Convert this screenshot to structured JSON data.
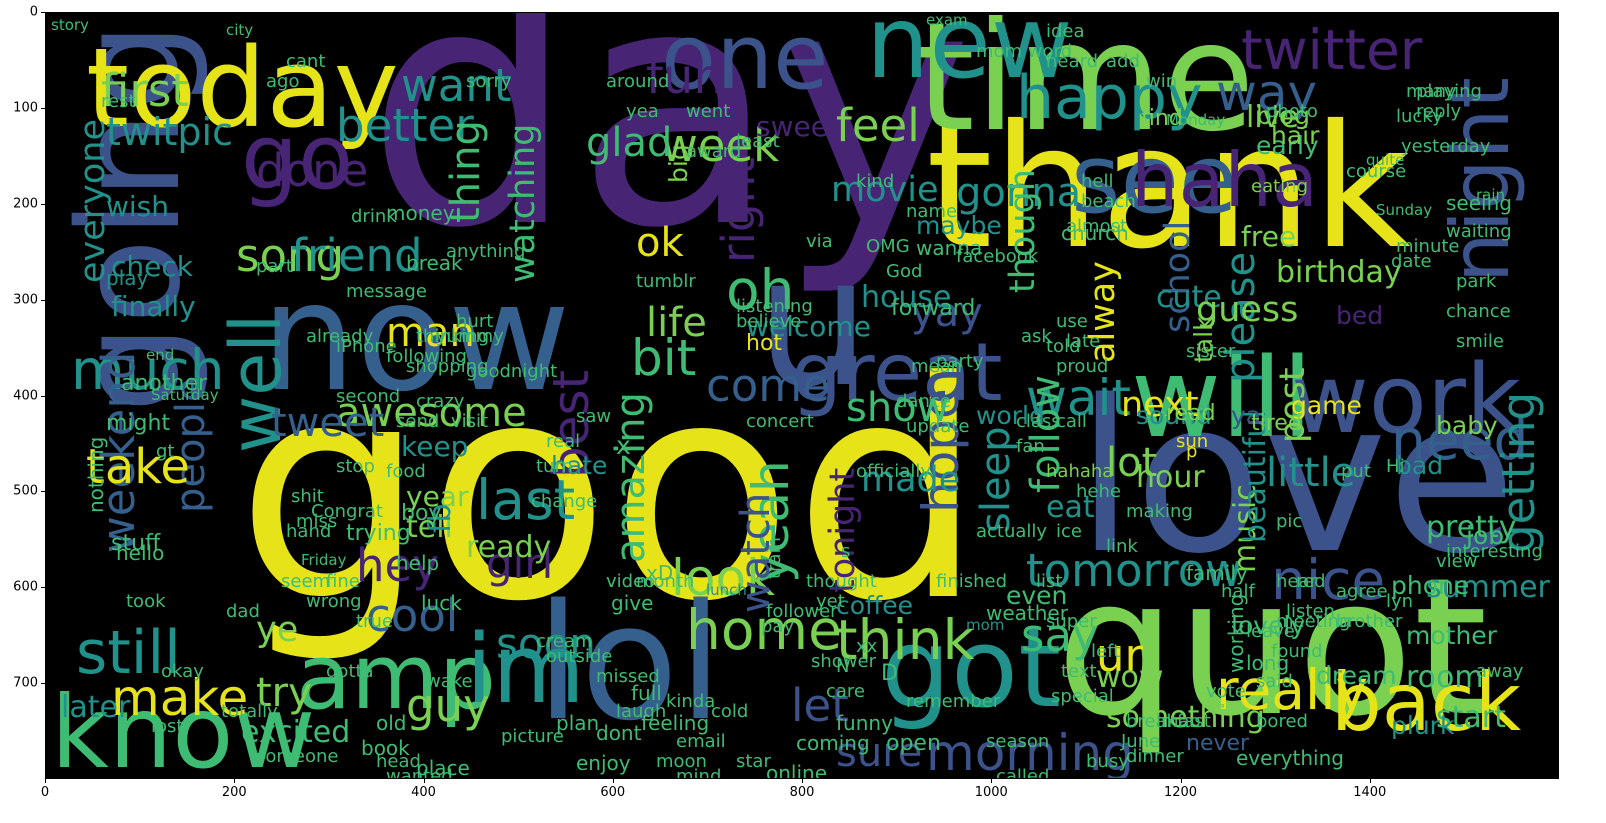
{
  "axes": {
    "x_ticks": [
      "0",
      "200",
      "400",
      "600",
      "800",
      "1000",
      "1200",
      "1400"
    ],
    "y_ticks": [
      "0",
      "100",
      "200",
      "300",
      "400",
      "500",
      "600",
      "700"
    ]
  },
  "palette": {
    "yellow": "#e6e419",
    "lime": "#7ad151",
    "green": "#3fbc73",
    "teal": "#21918c",
    "blue": "#355f8d",
    "indigo": "#3b528b",
    "purple": "#482475",
    "dark": "#440154"
  },
  "words": [
    {
      "t": "good",
      "c": "yellow"
    },
    {
      "t": "day",
      "c": "purple"
    },
    {
      "t": "thank",
      "c": "yellow"
    },
    {
      "t": "quot",
      "c": "lime"
    },
    {
      "t": "love",
      "c": "indigo"
    },
    {
      "t": "time",
      "c": "lime"
    },
    {
      "t": "now",
      "c": "blue"
    },
    {
      "t": "u",
      "c": "indigo"
    },
    {
      "t": "lol",
      "c": "blue"
    },
    {
      "t": "going",
      "c": "indigo"
    },
    {
      "t": "new",
      "c": "teal"
    },
    {
      "t": "today",
      "c": "yellow"
    },
    {
      "t": "one",
      "c": "indigo"
    },
    {
      "t": "will",
      "c": "green"
    },
    {
      "t": "got",
      "c": "teal"
    },
    {
      "t": "amp",
      "c": "green"
    },
    {
      "t": "know",
      "c": "green"
    },
    {
      "t": "see",
      "c": "blue"
    },
    {
      "t": "im",
      "c": "teal"
    },
    {
      "t": "work",
      "c": "indigo"
    },
    {
      "t": "back",
      "c": "yellow"
    },
    {
      "t": "haha",
      "c": "purple"
    },
    {
      "t": "great",
      "c": "indigo"
    },
    {
      "t": "go",
      "c": "purple"
    },
    {
      "t": "well",
      "c": "teal"
    },
    {
      "t": "night",
      "c": "indigo"
    },
    {
      "t": "twitter",
      "c": "purple"
    },
    {
      "t": "much",
      "c": "teal"
    },
    {
      "t": "make",
      "c": "yellow"
    },
    {
      "t": "think",
      "c": "lime"
    },
    {
      "t": "really",
      "c": "yellow"
    },
    {
      "t": "morning",
      "c": "indigo"
    },
    {
      "t": "home",
      "c": "lime"
    },
    {
      "t": "last",
      "c": "teal"
    },
    {
      "t": "tomorrow",
      "c": "teal"
    },
    {
      "t": "still",
      "c": "teal"
    },
    {
      "t": "guy",
      "c": "lime"
    },
    {
      "t": "hope",
      "c": "indigo"
    },
    {
      "t": "need",
      "c": "blue"
    },
    {
      "t": "wait",
      "c": "teal"
    },
    {
      "t": "happy",
      "c": "teal"
    },
    {
      "t": "bit",
      "c": "green"
    },
    {
      "t": "want",
      "c": "teal"
    },
    {
      "t": "say",
      "c": "green"
    },
    {
      "t": "look",
      "c": "lime"
    },
    {
      "t": "awesome",
      "c": "lime"
    },
    {
      "t": "feel",
      "c": "lime"
    },
    {
      "t": "way",
      "c": "blue"
    },
    {
      "t": "twitpic",
      "c": "teal"
    },
    {
      "t": "fun",
      "c": "purple"
    },
    {
      "t": "movie",
      "c": "teal"
    },
    {
      "t": "week",
      "c": "lime"
    },
    {
      "t": "song",
      "c": "lime"
    },
    {
      "t": "friend",
      "c": "teal"
    },
    {
      "t": "better",
      "c": "teal"
    },
    {
      "t": "first",
      "c": "lime"
    },
    {
      "t": "watching",
      "c": "green"
    },
    {
      "t": "thing",
      "c": "green"
    },
    {
      "t": "right",
      "c": "purple"
    },
    {
      "t": "oh",
      "c": "green"
    },
    {
      "t": "ok",
      "c": "yellow"
    },
    {
      "t": "gonna",
      "c": "teal"
    },
    {
      "t": "done",
      "c": "purple"
    },
    {
      "t": "life",
      "c": "lime"
    },
    {
      "t": "come",
      "c": "blue"
    },
    {
      "t": "yay",
      "c": "indigo"
    },
    {
      "t": "show",
      "c": "green"
    },
    {
      "t": "tweet",
      "c": "blue"
    },
    {
      "t": "best",
      "c": "purple"
    },
    {
      "t": "next",
      "c": "yellow"
    },
    {
      "t": "people",
      "c": "blue"
    },
    {
      "t": "everyone",
      "c": "teal"
    },
    {
      "t": "weekend",
      "c": "blue"
    },
    {
      "t": "take",
      "c": "yellow"
    },
    {
      "t": "made",
      "c": "teal"
    },
    {
      "t": "hey",
      "c": "purple"
    },
    {
      "t": "cool",
      "c": "blue"
    },
    {
      "t": "yeah",
      "c": "green"
    },
    {
      "t": "amazing",
      "c": "green"
    },
    {
      "t": "girl",
      "c": "purple"
    },
    {
      "t": "watch",
      "c": "indigo"
    },
    {
      "t": "soon",
      "c": "teal"
    },
    {
      "t": "tonight",
      "c": "purple"
    },
    {
      "t": "sleep",
      "c": "teal"
    },
    {
      "t": "follow",
      "c": "green"
    },
    {
      "t": "lot",
      "c": "lime"
    },
    {
      "t": "school",
      "c": "blue"
    },
    {
      "t": "nice",
      "c": "indigo"
    },
    {
      "t": "little",
      "c": "teal"
    },
    {
      "t": "getting",
      "c": "teal"
    },
    {
      "t": "please",
      "c": "teal"
    },
    {
      "t": "alway",
      "c": "yellow"
    },
    {
      "t": "though",
      "c": "green"
    },
    {
      "t": "sure",
      "c": "indigo"
    },
    {
      "t": "let",
      "c": "indigo"
    },
    {
      "t": "try",
      "c": "lime"
    },
    {
      "t": "ye",
      "c": "lime"
    },
    {
      "t": "later",
      "c": "teal"
    },
    {
      "t": "excited",
      "c": "green"
    },
    {
      "t": "pretty",
      "c": "green"
    },
    {
      "t": "summer",
      "c": "teal"
    },
    {
      "t": "birthday",
      "c": "lime"
    },
    {
      "t": "start",
      "c": "green"
    },
    {
      "t": "bad",
      "c": "teal"
    },
    {
      "t": "hour",
      "c": "lime"
    },
    {
      "t": "music",
      "c": "lime"
    },
    {
      "t": "beautiful",
      "c": "teal"
    },
    {
      "t": "ur",
      "c": "yellow"
    },
    {
      "t": "wow",
      "c": "lime"
    },
    {
      "t": "tell",
      "c": "lime"
    },
    {
      "t": "ready",
      "c": "lime"
    },
    {
      "t": "year",
      "c": "lime"
    },
    {
      "t": "keep",
      "c": "teal"
    },
    {
      "t": "check",
      "c": "teal"
    },
    {
      "t": "finally",
      "c": "teal"
    },
    {
      "t": "wish",
      "c": "teal"
    },
    {
      "t": "sound",
      "c": "teal"
    },
    {
      "t": "sweet",
      "c": "purple"
    },
    {
      "t": "welcome",
      "c": "teal"
    },
    {
      "t": "glad",
      "c": "green"
    },
    {
      "t": "man",
      "c": "yellow"
    },
    {
      "t": "house",
      "c": "teal"
    },
    {
      "t": "cute",
      "c": "teal"
    },
    {
      "t": "hate",
      "c": "teal"
    },
    {
      "t": "eat",
      "c": "teal"
    },
    {
      "t": "world",
      "c": "teal"
    },
    {
      "t": "mom",
      "c": "teal"
    },
    {
      "t": "maybe",
      "c": "teal"
    },
    {
      "t": "play",
      "c": "teal"
    },
    {
      "t": "lunch",
      "c": "teal"
    },
    {
      "t": "big",
      "c": "lime"
    },
    {
      "t": "fb",
      "c": "teal"
    },
    {
      "t": "coffee",
      "c": "teal"
    },
    {
      "t": "live",
      "c": "lime"
    },
    {
      "t": "early",
      "c": "green"
    },
    {
      "t": "blog",
      "c": "lime"
    },
    {
      "t": "hair",
      "c": "lime"
    },
    {
      "t": "eating",
      "c": "lime"
    },
    {
      "t": "find",
      "c": "lime"
    },
    {
      "t": "free",
      "c": "lime"
    },
    {
      "t": "post",
      "c": "lime"
    },
    {
      "t": "guess",
      "c": "lime"
    },
    {
      "t": "game",
      "c": "yellow"
    },
    {
      "t": "ya",
      "c": "indigo"
    },
    {
      "t": "read",
      "c": "lime"
    },
    {
      "t": "tired",
      "c": "lime"
    },
    {
      "t": "talk",
      "c": "lime"
    },
    {
      "t": "hahaha",
      "c": "lime"
    },
    {
      "t": "something",
      "c": "lime"
    },
    {
      "t": "plurk",
      "c": "teal"
    },
    {
      "t": "dream",
      "c": "green"
    },
    {
      "t": "mother",
      "c": "green"
    },
    {
      "t": "phone",
      "c": "green"
    },
    {
      "t": "job",
      "c": "green"
    },
    {
      "t": "baby",
      "c": "lime"
    },
    {
      "t": "Hi",
      "c": "green"
    },
    {
      "t": "put",
      "c": "green"
    },
    {
      "t": "hear",
      "c": "green"
    },
    {
      "t": "family",
      "c": "green"
    },
    {
      "t": "lovely",
      "c": "green"
    },
    {
      "t": "working",
      "c": "green"
    },
    {
      "t": "long",
      "c": "green"
    },
    {
      "t": "bored",
      "c": "green"
    },
    {
      "t": "busy",
      "c": "green"
    },
    {
      "t": "room",
      "c": "green"
    },
    {
      "t": "never",
      "c": "blue"
    },
    {
      "t": "everything",
      "c": "green"
    },
    {
      "t": "dinner",
      "c": "green"
    },
    {
      "t": "breakfast",
      "c": "green"
    },
    {
      "t": "open",
      "c": "green"
    },
    {
      "t": "funny",
      "c": "green"
    },
    {
      "t": "coming",
      "c": "green"
    },
    {
      "t": "online",
      "c": "green"
    },
    {
      "t": "full",
      "c": "green"
    },
    {
      "t": "feeling",
      "c": "green"
    },
    {
      "t": "dont",
      "c": "green"
    },
    {
      "t": "enjoy",
      "c": "green"
    },
    {
      "t": "plan",
      "c": "green"
    },
    {
      "t": "old",
      "c": "green"
    },
    {
      "t": "book",
      "c": "green"
    },
    {
      "t": "place",
      "c": "green"
    },
    {
      "t": "head",
      "c": "green"
    },
    {
      "t": "wanted",
      "c": "green"
    },
    {
      "t": "lost",
      "c": "green"
    },
    {
      "t": "someone",
      "c": "green"
    },
    {
      "t": "wake",
      "c": "green"
    },
    {
      "t": "totally",
      "c": "green"
    },
    {
      "t": "okay",
      "c": "green"
    },
    {
      "t": "gotta",
      "c": "green"
    },
    {
      "t": "true",
      "c": "green"
    },
    {
      "t": "help",
      "c": "green"
    },
    {
      "t": "luck",
      "c": "green"
    },
    {
      "t": "video",
      "c": "green"
    },
    {
      "t": "give",
      "c": "green"
    },
    {
      "t": "took",
      "c": "green"
    },
    {
      "t": "seem",
      "c": "green"
    },
    {
      "t": "saw",
      "c": "green"
    },
    {
      "t": "real",
      "c": "green"
    },
    {
      "t": "boy",
      "c": "green"
    },
    {
      "t": "miss",
      "c": "green"
    },
    {
      "t": "stop",
      "c": "green"
    },
    {
      "t": "food",
      "c": "green"
    },
    {
      "t": "trying",
      "c": "green"
    },
    {
      "t": "stuff",
      "c": "green"
    },
    {
      "t": "hello",
      "c": "green"
    },
    {
      "t": "nothing",
      "c": "green"
    },
    {
      "t": "might",
      "c": "green"
    },
    {
      "t": "another",
      "c": "green"
    },
    {
      "t": "end",
      "c": "green"
    },
    {
      "t": "Friday",
      "c": "green"
    },
    {
      "t": "Saturday",
      "c": "green"
    },
    {
      "t": "Sunday",
      "c": "green"
    },
    {
      "t": "Monday",
      "c": "green"
    },
    {
      "t": "yesterday",
      "c": "green"
    },
    {
      "t": "playing",
      "c": "green"
    },
    {
      "t": "seeing",
      "c": "green"
    },
    {
      "t": "waiting",
      "c": "green"
    },
    {
      "t": "rain",
      "c": "green"
    },
    {
      "t": "many",
      "c": "green"
    },
    {
      "t": "lucky",
      "c": "green"
    },
    {
      "t": "course",
      "c": "green"
    },
    {
      "t": "reply",
      "c": "green"
    },
    {
      "t": "quite",
      "c": "green"
    },
    {
      "t": "minute",
      "c": "green"
    },
    {
      "t": "date",
      "c": "green"
    },
    {
      "t": "park",
      "c": "green"
    },
    {
      "t": "chance",
      "c": "green"
    },
    {
      "t": "smile",
      "c": "green"
    },
    {
      "t": "bed",
      "c": "purple"
    },
    {
      "t": "forward",
      "c": "green"
    },
    {
      "t": "wanna",
      "c": "green"
    },
    {
      "t": "facebook",
      "c": "green"
    },
    {
      "t": "church",
      "c": "green"
    },
    {
      "t": "fan",
      "c": "green"
    },
    {
      "t": "almost",
      "c": "green"
    },
    {
      "t": "hell",
      "c": "green"
    },
    {
      "t": "beach",
      "c": "green"
    },
    {
      "t": "hot",
      "c": "yellow"
    },
    {
      "t": "least",
      "c": "green"
    },
    {
      "t": "yea",
      "c": "green"
    },
    {
      "t": "award",
      "c": "green"
    },
    {
      "t": "around",
      "c": "green"
    },
    {
      "t": "went",
      "c": "green"
    },
    {
      "t": "photo",
      "c": "green"
    },
    {
      "t": "idea",
      "c": "green"
    },
    {
      "t": "add",
      "c": "green"
    },
    {
      "t": "win",
      "c": "green"
    },
    {
      "t": "heard",
      "c": "green"
    },
    {
      "t": "mom word",
      "c": "green"
    },
    {
      "t": "exam",
      "c": "green"
    },
    {
      "t": "sorry",
      "c": "green"
    },
    {
      "t": "cant",
      "c": "green"
    },
    {
      "t": "ago",
      "c": "green"
    },
    {
      "t": "rest",
      "c": "green"
    },
    {
      "t": "story",
      "c": "green"
    },
    {
      "t": "city",
      "c": "green"
    },
    {
      "t": "pic",
      "c": "green"
    },
    {
      "t": "actually",
      "c": "green"
    },
    {
      "t": "weather",
      "c": "green"
    },
    {
      "t": "even",
      "c": "green"
    },
    {
      "t": "making",
      "c": "green"
    },
    {
      "t": "sun",
      "c": "yellow"
    },
    {
      "t": "hehe",
      "c": "green"
    },
    {
      "t": "list",
      "c": "green"
    },
    {
      "t": "super",
      "c": "green"
    },
    {
      "t": "email",
      "c": "green"
    },
    {
      "t": "star",
      "c": "green"
    },
    {
      "t": "cold",
      "c": "green"
    },
    {
      "t": "kinda",
      "c": "green"
    },
    {
      "t": "moon",
      "c": "green"
    },
    {
      "t": "mind",
      "c": "green"
    },
    {
      "t": "remember",
      "c": "green"
    },
    {
      "t": "season",
      "c": "green"
    },
    {
      "t": "called",
      "c": "green"
    },
    {
      "t": "lmao",
      "c": "green"
    },
    {
      "t": "June",
      "c": "green"
    },
    {
      "t": "vote",
      "c": "green"
    },
    {
      "t": "left",
      "c": "green"
    },
    {
      "t": "text",
      "c": "green"
    },
    {
      "t": "link",
      "c": "green"
    },
    {
      "t": "use",
      "c": "green"
    },
    {
      "t": "ask",
      "c": "green"
    },
    {
      "t": "late",
      "c": "green"
    },
    {
      "t": "proud",
      "c": "green"
    },
    {
      "t": "sister",
      "c": "green"
    },
    {
      "t": "told",
      "c": "green"
    },
    {
      "t": "mean",
      "c": "green"
    },
    {
      "t": "name",
      "c": "green"
    },
    {
      "t": "kind",
      "c": "green"
    },
    {
      "t": "OMG",
      "c": "green"
    },
    {
      "t": "via",
      "c": "green"
    },
    {
      "t": "God",
      "c": "green"
    },
    {
      "t": "dance",
      "c": "green"
    },
    {
      "t": "class",
      "c": "green"
    },
    {
      "t": "call",
      "c": "green"
    },
    {
      "t": "update",
      "c": "green"
    },
    {
      "t": "believe",
      "c": "green"
    },
    {
      "t": "listening",
      "c": "green"
    },
    {
      "t": "party",
      "c": "green"
    },
    {
      "t": "officially",
      "c": "green"
    },
    {
      "t": "concert",
      "c": "green"
    },
    {
      "t": "train",
      "c": "green"
    },
    {
      "t": "month",
      "c": "green"
    },
    {
      "t": "change",
      "c": "green"
    },
    {
      "t": "follower",
      "c": "green"
    },
    {
      "t": "turn",
      "c": "green"
    },
    {
      "t": "thought",
      "c": "green"
    },
    {
      "t": "yet",
      "c": "green"
    },
    {
      "t": "care",
      "c": "green"
    },
    {
      "t": "pay",
      "c": "green"
    },
    {
      "t": "shower",
      "c": "green"
    },
    {
      "t": "xx",
      "c": "green"
    },
    {
      "t": "finished",
      "c": "green"
    },
    {
      "t": "special",
      "c": "green"
    },
    {
      "t": "crazy",
      "c": "green"
    },
    {
      "t": "visit",
      "c": "green"
    },
    {
      "t": "send",
      "c": "green"
    },
    {
      "t": "yummy",
      "c": "green"
    },
    {
      "t": "shopping",
      "c": "green"
    },
    {
      "t": "goodnight",
      "c": "green"
    },
    {
      "t": "break",
      "c": "green"
    },
    {
      "t": "money",
      "c": "green"
    },
    {
      "t": "drink",
      "c": "green"
    },
    {
      "t": "part",
      "c": "green"
    },
    {
      "t": "message",
      "c": "green"
    },
    {
      "t": "iPhone",
      "c": "green"
    },
    {
      "t": "following",
      "c": "green"
    },
    {
      "t": "thinking",
      "c": "green"
    },
    {
      "t": "already",
      "c": "green"
    },
    {
      "t": "second",
      "c": "green"
    },
    {
      "t": "fine",
      "c": "green"
    },
    {
      "t": "hand",
      "c": "green"
    },
    {
      "t": "dad",
      "c": "green"
    },
    {
      "t": "shit",
      "c": "green"
    },
    {
      "t": "Congrat",
      "c": "green"
    },
    {
      "t": "wrong",
      "c": "green"
    },
    {
      "t": "leave",
      "c": "green"
    },
    {
      "t": "said",
      "c": "green"
    },
    {
      "t": "meeting",
      "c": "green"
    },
    {
      "t": "found",
      "c": "green"
    },
    {
      "t": "half",
      "c": "green"
    },
    {
      "t": "red",
      "c": "green"
    },
    {
      "t": "away",
      "c": "green"
    },
    {
      "t": "listen",
      "c": "green"
    },
    {
      "t": "brother",
      "c": "green"
    },
    {
      "t": "agree",
      "c": "green"
    },
    {
      "t": "view",
      "c": "green"
    },
    {
      "t": "interesting",
      "c": "green"
    },
    {
      "t": "ice",
      "c": "green"
    },
    {
      "t": "cream",
      "c": "green"
    },
    {
      "t": "outside",
      "c": "green"
    },
    {
      "t": "missed",
      "c": "green"
    },
    {
      "t": "laugh",
      "c": "green"
    },
    {
      "t": "picture",
      "c": "green"
    },
    {
      "t": "anything",
      "c": "green"
    },
    {
      "t": "tumblr",
      "c": "green"
    },
    {
      "t": "hurt",
      "c": "green"
    },
    {
      "t": "gt",
      "c": "green"
    },
    {
      "t": "xD",
      "c": "green"
    },
    {
      "t": "p",
      "c": "yellow"
    },
    {
      "t": "x",
      "c": "green"
    },
    {
      "t": "D",
      "c": "green"
    },
    {
      "t": "s",
      "c": "green"
    },
    {
      "t": "N",
      "c": "green"
    },
    {
      "t": "lyn",
      "c": "green"
    }
  ]
}
